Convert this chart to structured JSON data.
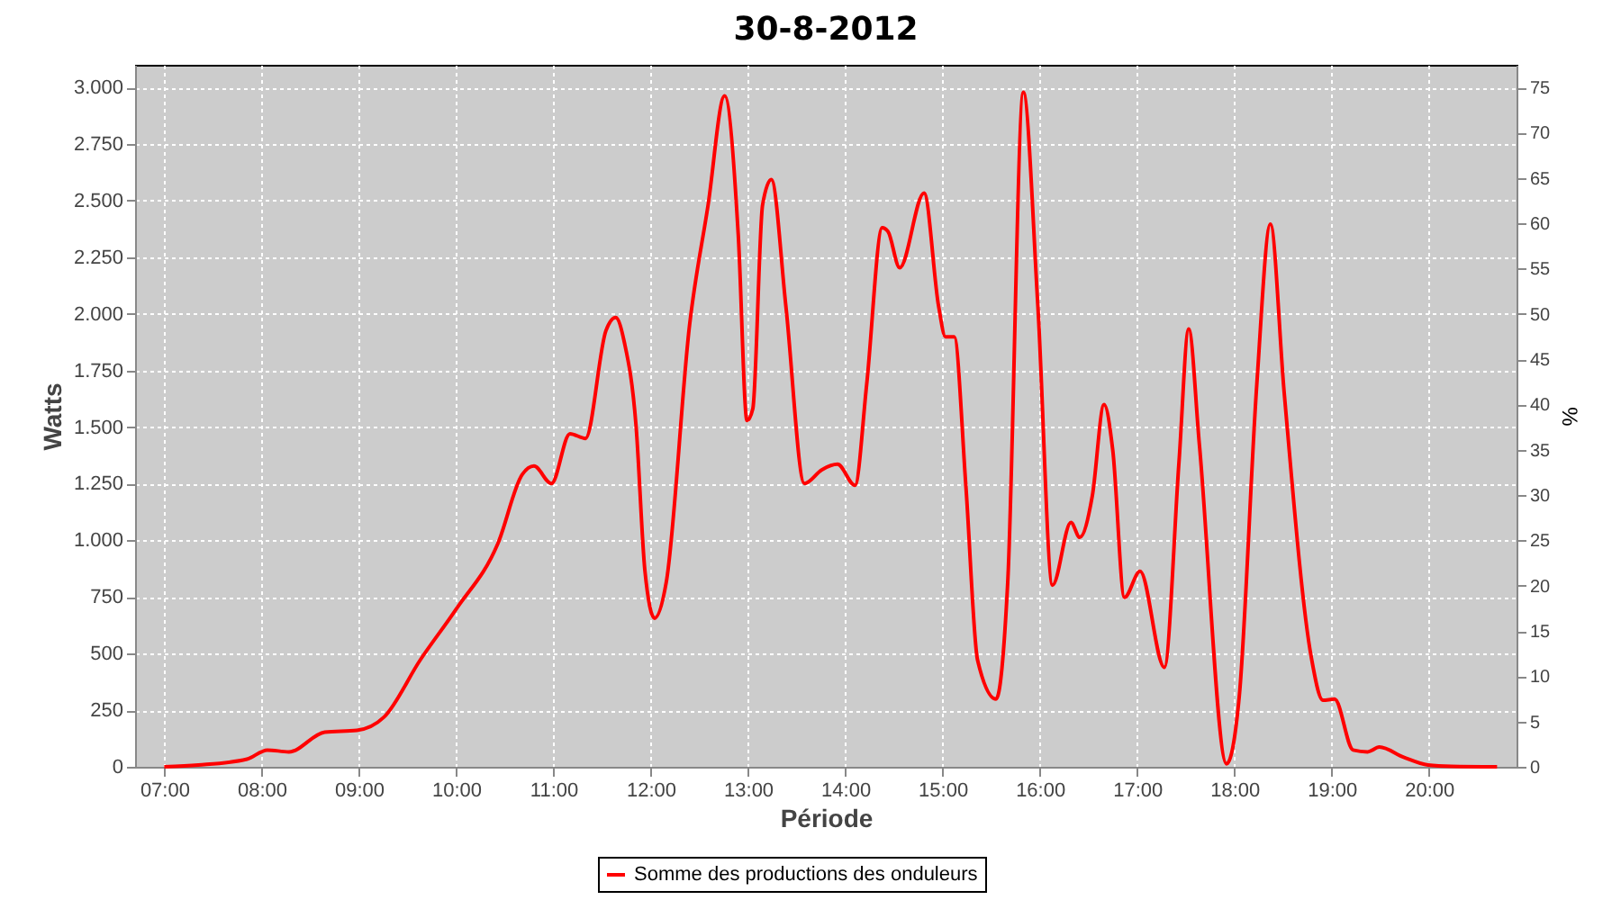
{
  "chart_data": {
    "type": "line",
    "title": "30-8-2012",
    "xlabel": "Période",
    "ylabel": "Watts",
    "y2label": "%",
    "x": [
      7.0,
      7.35,
      7.85,
      8.06,
      8.28,
      8.65,
      8.98,
      9.26,
      9.63,
      10.0,
      10.43,
      10.68,
      10.8,
      10.98,
      11.17,
      11.33,
      11.54,
      11.64,
      11.73,
      11.85,
      11.94,
      12.04,
      12.16,
      12.4,
      12.59,
      12.76,
      12.9,
      12.99,
      13.05,
      13.15,
      13.24,
      13.39,
      13.58,
      13.76,
      13.92,
      14.1,
      14.22,
      14.38,
      14.44,
      14.56,
      14.81,
      14.96,
      15.03,
      15.12,
      15.24,
      15.36,
      15.55,
      15.67,
      15.83,
      15.98,
      16.13,
      16.32,
      16.41,
      16.54,
      16.66,
      16.75,
      16.87,
      17.03,
      17.28,
      17.43,
      17.53,
      17.64,
      17.92,
      18.05,
      18.23,
      18.37,
      18.51,
      18.79,
      18.91,
      19.03,
      19.22,
      19.37,
      19.49,
      19.74,
      19.99,
      20.23,
      20.7
    ],
    "series": [
      {
        "name": "Somme des productions des onduleurs",
        "color": "#ff0000",
        "values": [
          0,
          8,
          34,
          74,
          66,
          153,
          161,
          220,
          471,
          696,
          987,
          1291,
          1328,
          1251,
          1471,
          1450,
          1926,
          1984,
          1873,
          1503,
          868,
          656,
          815,
          1952,
          2481,
          2963,
          2349,
          1529,
          1582,
          2481,
          2593,
          2032,
          1251,
          1312,
          1336,
          1243,
          1688,
          2381,
          2363,
          2204,
          2534,
          2032,
          1899,
          1899,
          1238,
          471,
          299,
          815,
          2979,
          2032,
          802,
          1079,
          1013,
          1198,
          1600,
          1397,
          748,
          863,
          439,
          1344,
          1934,
          1423,
          13,
          312,
          1688,
          2397,
          1661,
          484,
          294,
          299,
          74,
          66,
          87,
          42,
          8,
          2,
          0
        ]
      }
    ],
    "xlim": [
      6.7,
      20.9
    ],
    "xticks": [
      {
        "value": 7,
        "label": "07:00"
      },
      {
        "value": 8,
        "label": "08:00"
      },
      {
        "value": 9,
        "label": "09:00"
      },
      {
        "value": 10,
        "label": "10:00"
      },
      {
        "value": 11,
        "label": "11:00"
      },
      {
        "value": 12,
        "label": "12:00"
      },
      {
        "value": 13,
        "label": "13:00"
      },
      {
        "value": 14,
        "label": "14:00"
      },
      {
        "value": 15,
        "label": "15:00"
      },
      {
        "value": 16,
        "label": "16:00"
      },
      {
        "value": 17,
        "label": "17:00"
      },
      {
        "value": 18,
        "label": "18:00"
      },
      {
        "value": 19,
        "label": "19:00"
      },
      {
        "value": 20,
        "label": "20:00"
      }
    ],
    "ylim": [
      0,
      3100
    ],
    "yticks": [
      0,
      250,
      500,
      750,
      {
        "value": 1000,
        "label": "1.000"
      },
      {
        "value": 1250,
        "label": "1.250"
      },
      {
        "value": 1500,
        "label": "1.500"
      },
      {
        "value": 1750,
        "label": "1.750"
      },
      {
        "value": 2000,
        "label": "2.000"
      },
      {
        "value": 2250,
        "label": "2.250"
      },
      {
        "value": 2500,
        "label": "2.500"
      },
      {
        "value": 2750,
        "label": "2.750"
      },
      {
        "value": 3000,
        "label": "3.000"
      }
    ],
    "y2lim": [
      0,
      77.5
    ],
    "y2ticks": [
      0,
      5,
      10,
      15,
      20,
      25,
      30,
      35,
      40,
      45,
      50,
      55,
      60,
      65,
      70,
      75
    ],
    "grid": true,
    "legend": "bottom",
    "marker": "none",
    "line_style": "solid"
  }
}
